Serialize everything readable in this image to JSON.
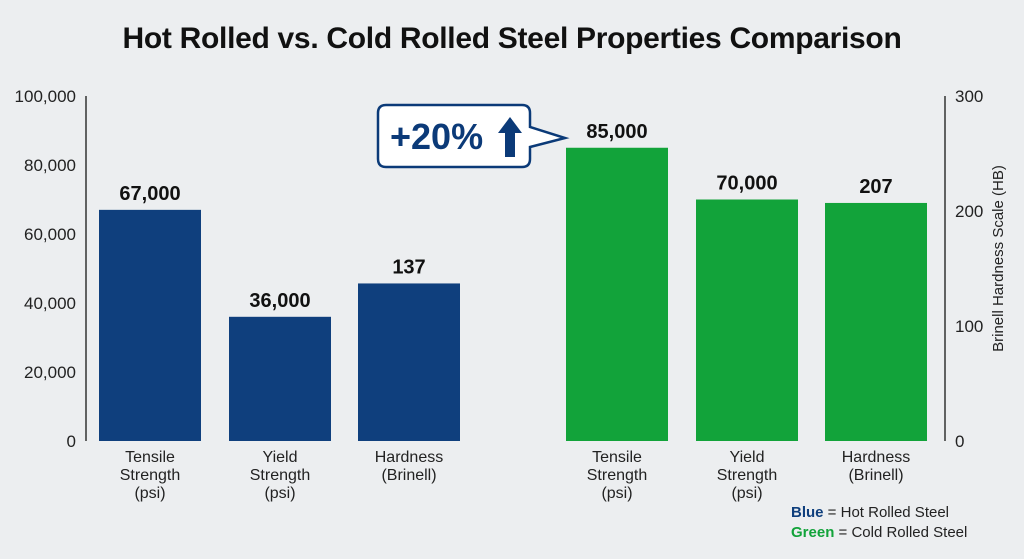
{
  "chart_data": {
    "type": "bar",
    "title": "Hot Rolled vs. Cold Rolled Steel Properties Comparison",
    "left_axis": {
      "ticks": [
        "100,000",
        "80,000",
        "60,000",
        "40,000",
        "20,000",
        "0"
      ],
      "ylim": [
        0,
        100000
      ]
    },
    "right_axis": {
      "label": "Brinell Hardness Scale (HB)",
      "ticks": [
        "300",
        "200",
        "100",
        "0"
      ],
      "ylim": [
        0,
        300
      ]
    },
    "groups": [
      {
        "name": "Hot Rolled Steel",
        "color": "#0f3f7d",
        "bars": [
          {
            "category": [
              "Tensile",
              "Strength",
              "(psi)"
            ],
            "value": 67000,
            "axis": "left",
            "label": "67,000"
          },
          {
            "category": [
              "Yield",
              "Strength",
              "(psi)"
            ],
            "value": 36000,
            "axis": "left",
            "label": "36,000"
          },
          {
            "category": [
              "Hardness",
              "(Brinell)"
            ],
            "value": 137,
            "axis": "right",
            "label": "137"
          }
        ]
      },
      {
        "name": "Cold Rolled Steel",
        "color": "#12a33a",
        "bars": [
          {
            "category": [
              "Tensile",
              "Strength",
              "(psi)"
            ],
            "value": 85000,
            "axis": "left",
            "label": "85,000"
          },
          {
            "category": [
              "Yield",
              "Strength",
              "(psi)"
            ],
            "value": 70000,
            "axis": "left",
            "label": "70,000"
          },
          {
            "category": [
              "Hardness",
              "(Brinell)"
            ],
            "value": 207,
            "axis": "right",
            "label": "207"
          }
        ]
      }
    ],
    "annotation": {
      "text": "+20%",
      "icon": "up-arrow-icon"
    }
  },
  "legend": {
    "blue_word": "Blue",
    "blue_text": " = Hot Rolled Steel",
    "green_word": "Green",
    "green_text": " = Cold Rolled Steel"
  }
}
